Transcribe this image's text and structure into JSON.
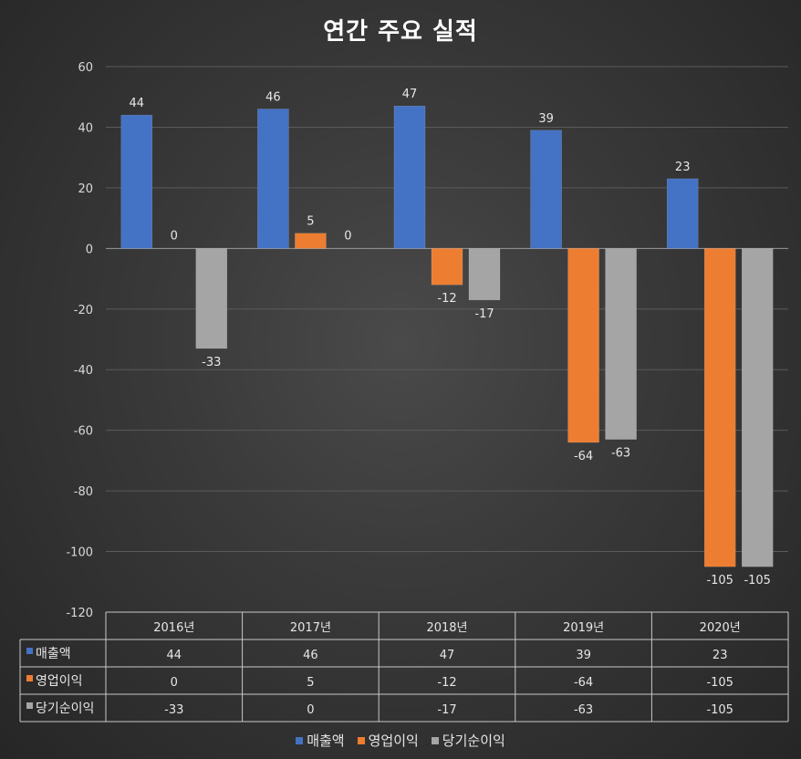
{
  "chart_data": {
    "type": "bar",
    "title": "연간 주요 실적",
    "categories": [
      "2016년",
      "2017년",
      "2018년",
      "2019년",
      "2020년"
    ],
    "series": [
      {
        "name": "매출액",
        "color": "#4472c4",
        "values": [
          44,
          46,
          47,
          39,
          23
        ]
      },
      {
        "name": "영업이익",
        "color": "#ed7d31",
        "values": [
          0,
          5,
          -12,
          -64,
          -105
        ]
      },
      {
        "name": "당기순이익",
        "color": "#a5a5a5",
        "values": [
          -33,
          0,
          -17,
          -63,
          -105
        ]
      }
    ],
    "ylim": [
      -120,
      60
    ],
    "yticks": [
      60,
      40,
      20,
      0,
      -20,
      -40,
      -60,
      -80,
      -100,
      -120
    ],
    "grid": true,
    "data_table": true,
    "legend": "bottom"
  }
}
